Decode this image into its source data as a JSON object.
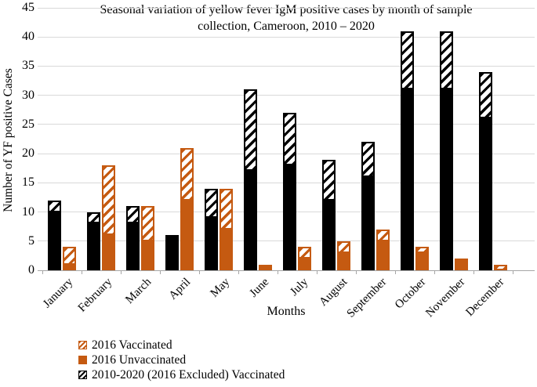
{
  "colors": {
    "orange": "#c55a11",
    "black": "#000000",
    "gridline": "#d9d9d9",
    "axis": "#a6a6a6"
  },
  "chart_data": {
    "type": "stacked-bar",
    "title": "Seasonal variation of  yellow fever IgM positive cases by month of sample collection, Cameroon, 2010 – 2020",
    "title_lines": [
      "Seasonal variation of  yellow fever IgM positive cases by month of sample",
      "collection, Cameroon, 2010 – 2020"
    ],
    "xlabel": "Months",
    "ylabel": "Number of YF positive Cases",
    "ylim": [
      0,
      45
    ],
    "yticks": [
      0,
      5,
      10,
      15,
      20,
      25,
      30,
      35,
      40,
      45
    ],
    "grid": "horizontal",
    "legend_position": "bottom-left",
    "categories": [
      "January",
      "February",
      "March",
      "April",
      "May",
      "June",
      "July",
      "August",
      "September",
      "October",
      "November",
      "December"
    ],
    "bars": [
      {
        "name": "2010-2020 (2016 excluded)",
        "style": "black",
        "solid_values": [
          10,
          8,
          8,
          6,
          9,
          17,
          18,
          12,
          16,
          31,
          31,
          26
        ],
        "hatch_values": [
          2,
          2,
          3,
          0,
          5,
          14,
          9,
          7,
          6,
          10,
          10,
          8
        ],
        "hatch_legend": "2010-2020 (2016 Excluded) Vaccinated",
        "totals": [
          12,
          10,
          11,
          6,
          14,
          31,
          27,
          19,
          22,
          41,
          41,
          34
        ]
      },
      {
        "name": "2016",
        "style": "orange",
        "solid_values": [
          1,
          6,
          5,
          12,
          7,
          1,
          2,
          3,
          5,
          3,
          2,
          0
        ],
        "hatch_values": [
          3,
          12,
          6,
          9,
          7,
          0,
          2,
          2,
          2,
          1,
          0,
          1
        ],
        "solid_legend": "2016 Unvaccinated",
        "hatch_legend": "2016 Vaccinated",
        "totals": [
          4,
          18,
          11,
          21,
          14,
          1,
          4,
          5,
          7,
          4,
          2,
          1
        ]
      }
    ]
  },
  "legend": [
    {
      "label": "2016 Vaccinated",
      "swatch": "orange-hatch"
    },
    {
      "label": "2016 Unvaccinated",
      "swatch": "orange-solid"
    },
    {
      "label": "2010-2020 (2016 Excluded) Vaccinated",
      "swatch": "black-hatch"
    }
  ]
}
